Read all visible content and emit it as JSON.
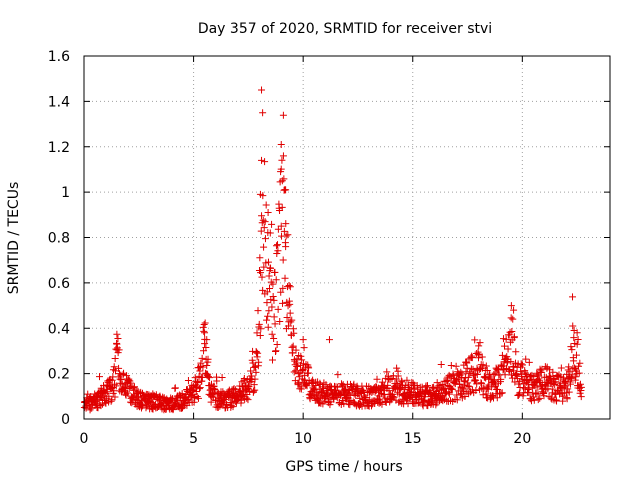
{
  "chart_data": {
    "type": "scatter",
    "title": "Day 357 of 2020, SRMTID for receiver stvi",
    "xlabel": "GPS time / hours",
    "ylabel": "SRMTID / TECUs",
    "xlim": [
      0,
      24
    ],
    "ylim": [
      0,
      1.6
    ],
    "xticks": [
      0,
      5,
      10,
      15,
      20
    ],
    "xtick_labels": [
      "0",
      "5",
      "10",
      "15",
      "20"
    ],
    "yticks": [
      0,
      0.2,
      0.4,
      0.6,
      0.8,
      1.0,
      1.2,
      1.4,
      1.6
    ],
    "ytick_labels": [
      "0",
      "0.2",
      "0.4",
      "0.6",
      "0.8",
      "1",
      "1.2",
      "1.4",
      "1.6"
    ],
    "grid": true,
    "marker": "+",
    "marker_color": "#e00000",
    "series": [
      {
        "name": "stvi",
        "x_range": [
          0,
          22.7
        ],
        "profile": [
          [
            0.0,
            0.06
          ],
          [
            0.5,
            0.08
          ],
          [
            1.0,
            0.11
          ],
          [
            1.4,
            0.16
          ],
          [
            1.5,
            0.28
          ],
          [
            1.7,
            0.15
          ],
          [
            2.0,
            0.13
          ],
          [
            2.5,
            0.09
          ],
          [
            3.0,
            0.08
          ],
          [
            3.5,
            0.07
          ],
          [
            4.0,
            0.07
          ],
          [
            4.5,
            0.08
          ],
          [
            5.0,
            0.11
          ],
          [
            5.3,
            0.18
          ],
          [
            5.5,
            0.33
          ],
          [
            5.7,
            0.14
          ],
          [
            6.0,
            0.09
          ],
          [
            6.5,
            0.08
          ],
          [
            7.0,
            0.1
          ],
          [
            7.5,
            0.14
          ],
          [
            7.8,
            0.22
          ],
          [
            8.0,
            0.45
          ],
          [
            8.2,
            0.9
          ],
          [
            8.4,
            0.55
          ],
          [
            8.6,
            0.4
          ],
          [
            8.8,
            0.55
          ],
          [
            9.0,
            0.85
          ],
          [
            9.2,
            0.7
          ],
          [
            9.5,
            0.3
          ],
          [
            10.0,
            0.2
          ],
          [
            10.5,
            0.12
          ],
          [
            11.0,
            0.11
          ],
          [
            11.5,
            0.1
          ],
          [
            12.0,
            0.12
          ],
          [
            12.5,
            0.1
          ],
          [
            13.0,
            0.1
          ],
          [
            13.5,
            0.11
          ],
          [
            14.0,
            0.14
          ],
          [
            14.5,
            0.12
          ],
          [
            15.0,
            0.12
          ],
          [
            15.5,
            0.1
          ],
          [
            16.0,
            0.11
          ],
          [
            16.5,
            0.13
          ],
          [
            17.0,
            0.14
          ],
          [
            17.5,
            0.18
          ],
          [
            18.0,
            0.22
          ],
          [
            18.5,
            0.14
          ],
          [
            19.0,
            0.17
          ],
          [
            19.5,
            0.32
          ],
          [
            19.8,
            0.18
          ],
          [
            20.5,
            0.14
          ],
          [
            21.0,
            0.17
          ],
          [
            21.5,
            0.14
          ],
          [
            22.0,
            0.13
          ],
          [
            22.3,
            0.28
          ],
          [
            22.5,
            0.25
          ],
          [
            22.7,
            0.12
          ]
        ],
        "peaks": [
          [
            8.1,
            1.45
          ],
          [
            8.15,
            1.35
          ],
          [
            8.1,
            1.14
          ],
          [
            8.05,
            0.99
          ],
          [
            8.4,
            0.91
          ],
          [
            8.5,
            0.82
          ],
          [
            9.0,
            1.21
          ],
          [
            9.1,
            1.16
          ],
          [
            9.05,
            1.05
          ],
          [
            9.2,
            1.01
          ],
          [
            9.0,
            0.85
          ],
          [
            9.2,
            0.76
          ],
          [
            1.5,
            0.33
          ],
          [
            5.5,
            0.38
          ],
          [
            5.6,
            0.35
          ],
          [
            19.5,
            0.5
          ],
          [
            19.6,
            0.48
          ],
          [
            22.3,
            0.41
          ],
          [
            22.5,
            0.38
          ],
          [
            10.0,
            0.35
          ],
          [
            11.2,
            0.35
          ],
          [
            18.0,
            0.27
          ],
          [
            16.3,
            0.24
          ]
        ],
        "n_points": 1500
      }
    ]
  }
}
